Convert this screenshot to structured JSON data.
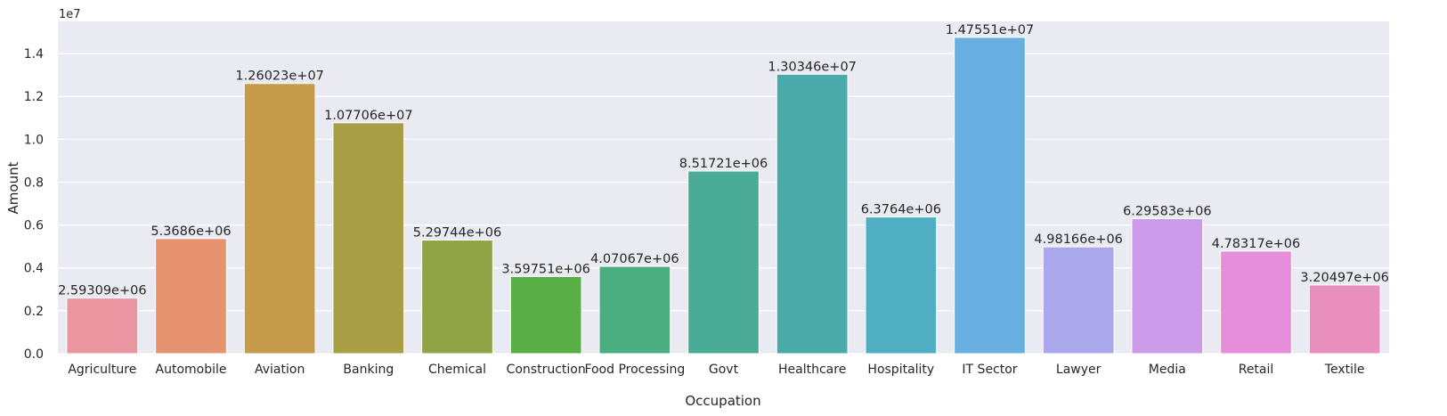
{
  "chart_data": {
    "type": "bar",
    "xlabel": "Occupation",
    "ylabel": "Amount",
    "y_offset_label": "1e7",
    "ylim": [
      0,
      15500000
    ],
    "yticks": [
      0,
      2000000,
      4000000,
      6000000,
      8000000,
      10000000,
      12000000,
      14000000
    ],
    "ytick_labels": [
      "0.0",
      "0.2",
      "0.4",
      "0.6",
      "0.8",
      "1.0",
      "1.2",
      "1.4"
    ],
    "grid": true,
    "categories": [
      "Agriculture",
      "Automobile",
      "Aviation",
      "Banking",
      "Chemical",
      "Construction",
      "Food Processing",
      "Govt",
      "Healthcare",
      "Hospitality",
      "IT Sector",
      "Lawyer",
      "Media",
      "Retail",
      "Textile"
    ],
    "values": [
      2593090,
      5368600,
      12602300,
      10770600,
      5297440,
      3597510,
      4070670,
      8517210,
      13034600,
      6376400,
      14755100,
      4981660,
      6295830,
      4783170,
      3204970
    ],
    "data_labels": [
      "2.59309e+06",
      "5.3686e+06",
      "1.26023e+07",
      "1.07706e+07",
      "5.29744e+06",
      "3.59751e+06",
      "4.07067e+06",
      "8.51721e+06",
      "1.30346e+07",
      "6.3764e+06",
      "1.47551e+07",
      "4.98166e+06",
      "6.29583e+06",
      "4.78317e+06",
      "3.20497e+06"
    ],
    "colors": [
      "#ea96a1",
      "#e8936f",
      "#c69a4b",
      "#a89e46",
      "#90a447",
      "#5aae46",
      "#4bae80",
      "#4aac96",
      "#4aaaa9",
      "#50aec3",
      "#6aafe2",
      "#aaa8ea",
      "#cb9ae8",
      "#e68ed9",
      "#e88fbe"
    ]
  }
}
